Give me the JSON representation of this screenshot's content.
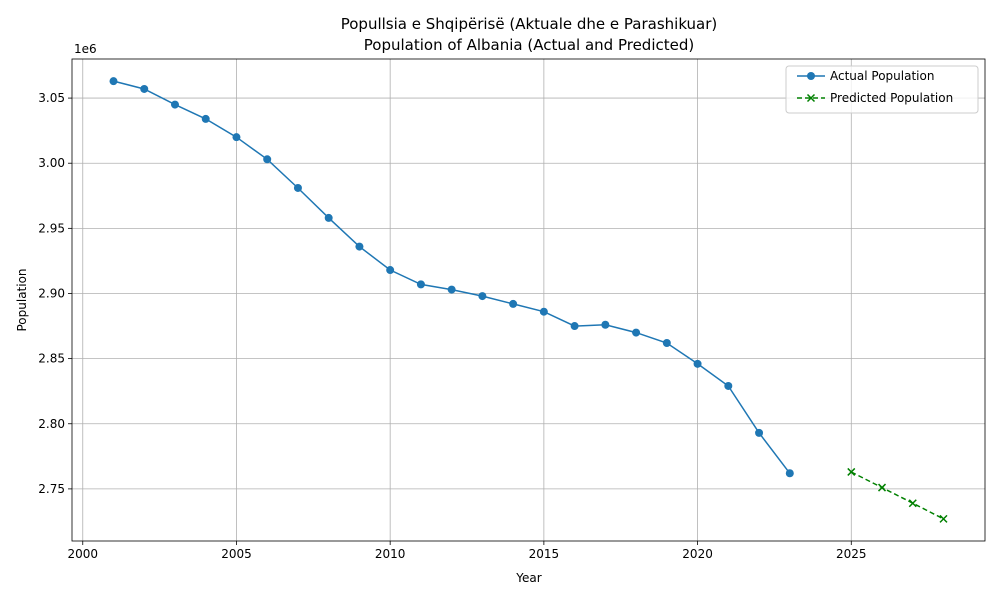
{
  "chart_data": {
    "type": "line",
    "title": "Popullsia e Shqipërisë (Aktuale dhe e Parashikuar)",
    "subtitle": "Population of Albania (Actual and Predicted)",
    "xlabel": "Year",
    "ylabel": "Population",
    "y_offset_label": "1e6",
    "xlim": [
      1999.65,
      2029.35
    ],
    "ylim": [
      2710000,
      3080000
    ],
    "grid": true,
    "legend_position": "top-right",
    "x_ticks": [
      2000,
      2005,
      2010,
      2015,
      2020,
      2025
    ],
    "x_tick_labels": [
      "2000",
      "2005",
      "2010",
      "2015",
      "2020",
      "2025"
    ],
    "y_ticks": [
      2750000,
      2800000,
      2850000,
      2900000,
      2950000,
      3000000,
      3050000
    ],
    "y_tick_labels": [
      "2.75",
      "2.80",
      "2.85",
      "2.90",
      "2.95",
      "3.00",
      "3.05"
    ],
    "series": [
      {
        "name": "Actual Population",
        "color": "#1f77b4",
        "line_style": "solid",
        "marker": "circle",
        "x": [
          2001,
          2002,
          2003,
          2004,
          2005,
          2006,
          2007,
          2008,
          2009,
          2010,
          2011,
          2012,
          2013,
          2014,
          2015,
          2016,
          2017,
          2018,
          2019,
          2020,
          2021,
          2022,
          2023
        ],
        "values": [
          3063000,
          3057000,
          3045000,
          3034000,
          3020000,
          3003000,
          2981000,
          2958000,
          2936000,
          2918000,
          2907000,
          2903000,
          2898000,
          2892000,
          2886000,
          2875000,
          2876000,
          2870000,
          2862000,
          2846000,
          2829000,
          2793000,
          2762000
        ]
      },
      {
        "name": "Predicted Population",
        "color": "#008000",
        "line_style": "dashed",
        "marker": "x",
        "x": [
          2025,
          2026,
          2027,
          2028
        ],
        "values": [
          2763000,
          2751000,
          2739000,
          2727000
        ]
      }
    ]
  }
}
